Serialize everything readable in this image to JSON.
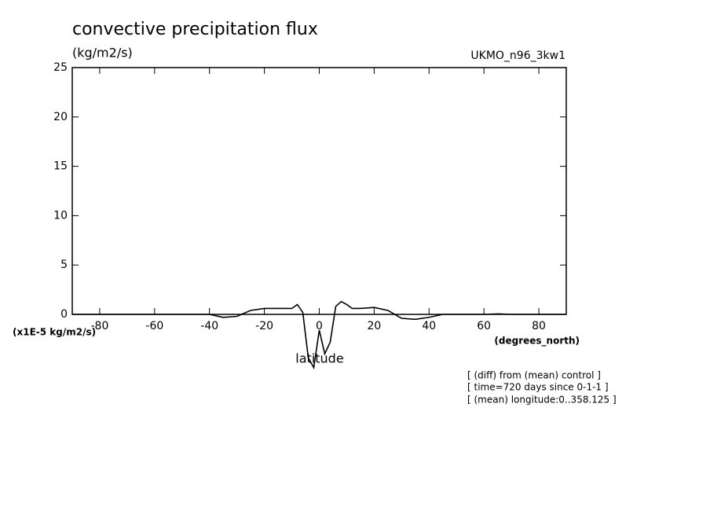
{
  "chart_data": {
    "type": "line",
    "title": "convective precipitation flux",
    "subtitle": "(kg/m2/s)",
    "model": "UKMO_n96_3kw1",
    "ylabel": "(x1E-5 kg/m2/s)",
    "xunits": "(degrees_north)",
    "xlabel": "latitude",
    "annotations": [
      "[ (diff) from (mean) control ]",
      "[ time=720 days since 0-1-1 ]",
      "[ (mean) longitude:0..358.125 ]"
    ],
    "x": [
      -90,
      -80,
      -70,
      -60,
      -50,
      -45,
      -40,
      -35,
      -30,
      -25,
      -20,
      -15,
      -10,
      -8,
      -6,
      -4,
      -2,
      0,
      2,
      4,
      6,
      8,
      10,
      12,
      15,
      20,
      25,
      30,
      35,
      40,
      45,
      50,
      60,
      65,
      70,
      80,
      90
    ],
    "series": [
      {
        "name": "UKMO_n96_3kw1",
        "color": "#000000",
        "values": [
          0,
          0,
          0,
          0,
          0,
          0,
          0,
          -0.3,
          -0.2,
          0.4,
          0.6,
          0.6,
          0.6,
          1.0,
          0.2,
          -4.4,
          -5.4,
          -1.6,
          -4.0,
          -2.8,
          0.8,
          1.3,
          1.0,
          0.6,
          0.6,
          0.7,
          0.4,
          -0.4,
          -0.5,
          -0.3,
          0,
          0,
          0,
          0.05,
          0,
          0,
          0
        ]
      }
    ],
    "xlim": [
      -90,
      90
    ],
    "xticks": [
      -80,
      -60,
      -40,
      -20,
      0,
      20,
      40,
      60,
      80
    ],
    "ylim": [
      0,
      25
    ],
    "yticks": [
      0,
      5,
      10,
      15,
      20,
      25
    ]
  }
}
